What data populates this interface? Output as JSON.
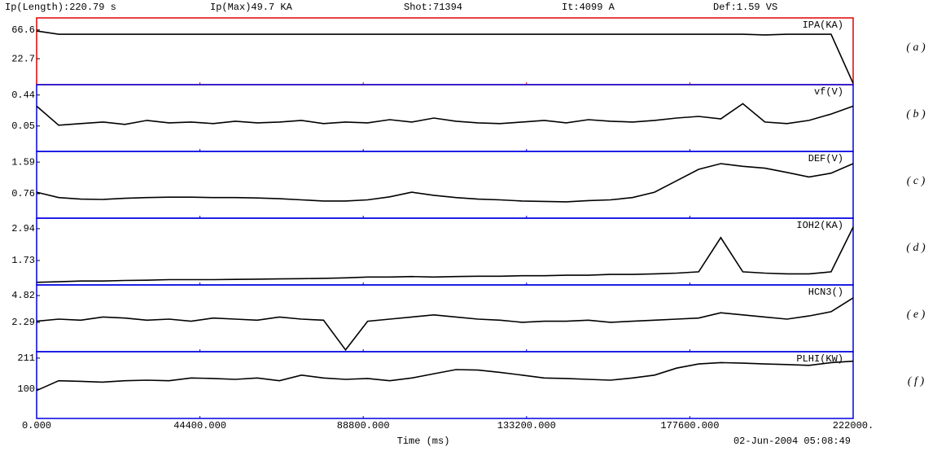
{
  "header": {
    "length": "Ip(Length):220.79 s",
    "max": "Ip(Max)49.7 KA",
    "shot": "Shot:71394",
    "it": "It:4099 A",
    "def": "Def:1.59 VS"
  },
  "footer": {
    "xlabel": "Time (ms)",
    "timestamp": "02-Jun-2004 05:08:49"
  },
  "chart_data": [
    {
      "type": "line",
      "title": "IPA(KA)",
      "panel": "( a )",
      "border_color": "#e00000",
      "color": "#000000",
      "ylim": [
        -17,
        85
      ],
      "yticks": [
        {
          "value": 66.6,
          "label": "66.6"
        },
        {
          "value": 22.7,
          "label": "22.7"
        }
      ],
      "x": [
        0,
        6000,
        12000,
        18000,
        24000,
        30000,
        36000,
        42000,
        48000,
        54000,
        60000,
        66000,
        72000,
        78000,
        84000,
        90000,
        96000,
        102000,
        108000,
        114000,
        120000,
        126000,
        132000,
        138000,
        144000,
        150000,
        156000,
        162000,
        168000,
        174000,
        180000,
        186000,
        192000,
        198000,
        204000,
        210000,
        216000,
        222000
      ],
      "values": [
        65,
        60,
        60,
        60,
        60,
        60,
        60,
        60,
        60,
        60,
        60,
        60,
        60,
        60,
        60,
        60,
        60,
        60,
        60,
        60,
        60,
        60,
        60,
        60,
        60,
        60,
        60,
        60,
        60,
        60,
        60,
        60,
        60,
        59,
        60,
        60,
        60,
        -15
      ]
    },
    {
      "type": "line",
      "title": "vf(V)",
      "panel": "( b )",
      "border_color": "#0000e0",
      "color": "#000000",
      "ylim": [
        -0.27,
        0.57
      ],
      "yticks": [
        0.44,
        0.05
      ],
      "x": [
        0,
        6000,
        12000,
        18000,
        24000,
        30000,
        36000,
        42000,
        48000,
        54000,
        60000,
        66000,
        72000,
        78000,
        84000,
        90000,
        96000,
        102000,
        108000,
        114000,
        120000,
        126000,
        132000,
        138000,
        144000,
        150000,
        156000,
        162000,
        168000,
        174000,
        180000,
        186000,
        192000,
        198000,
        204000,
        210000,
        216000,
        222000
      ],
      "values": [
        0.3,
        0.06,
        0.08,
        0.1,
        0.07,
        0.12,
        0.09,
        0.1,
        0.08,
        0.11,
        0.09,
        0.1,
        0.12,
        0.08,
        0.1,
        0.09,
        0.13,
        0.1,
        0.15,
        0.11,
        0.09,
        0.08,
        0.1,
        0.12,
        0.09,
        0.13,
        0.11,
        0.1,
        0.12,
        0.15,
        0.17,
        0.14,
        0.33,
        0.1,
        0.08,
        0.12,
        0.2,
        0.3
      ]
    },
    {
      "type": "line",
      "title": "DEF(V)",
      "panel": "( c )",
      "border_color": "#0000e0",
      "color": "#000000",
      "ylim": [
        0.12,
        1.87
      ],
      "yticks": [
        1.59,
        0.76
      ],
      "x": [
        0,
        6000,
        12000,
        18000,
        24000,
        30000,
        36000,
        42000,
        48000,
        54000,
        60000,
        66000,
        72000,
        78000,
        84000,
        90000,
        96000,
        102000,
        108000,
        114000,
        120000,
        126000,
        132000,
        138000,
        144000,
        150000,
        156000,
        162000,
        168000,
        174000,
        180000,
        186000,
        192000,
        198000,
        204000,
        210000,
        216000,
        222000
      ],
      "values": [
        0.8,
        0.66,
        0.62,
        0.61,
        0.64,
        0.66,
        0.67,
        0.67,
        0.66,
        0.66,
        0.65,
        0.63,
        0.6,
        0.57,
        0.57,
        0.6,
        0.68,
        0.8,
        0.72,
        0.66,
        0.62,
        0.6,
        0.57,
        0.56,
        0.55,
        0.58,
        0.6,
        0.66,
        0.8,
        1.1,
        1.4,
        1.55,
        1.48,
        1.43,
        1.32,
        1.2,
        1.3,
        1.55
      ]
    },
    {
      "type": "line",
      "title": "IOH2(KA)",
      "panel": "( d )",
      "border_color": "#0000e0",
      "color": "#000000",
      "ylim": [
        0.8,
        3.34
      ],
      "yticks": [
        2.94,
        1.73
      ],
      "x": [
        0,
        6000,
        12000,
        18000,
        24000,
        30000,
        36000,
        42000,
        48000,
        54000,
        60000,
        66000,
        72000,
        78000,
        84000,
        90000,
        96000,
        102000,
        108000,
        114000,
        120000,
        126000,
        132000,
        138000,
        144000,
        150000,
        156000,
        162000,
        168000,
        174000,
        180000,
        186000,
        192000,
        198000,
        204000,
        210000,
        216000,
        222000
      ],
      "values": [
        0.9,
        0.92,
        0.95,
        0.95,
        0.97,
        0.98,
        1.0,
        1.0,
        1.0,
        1.01,
        1.02,
        1.03,
        1.04,
        1.05,
        1.07,
        1.1,
        1.1,
        1.12,
        1.1,
        1.12,
        1.13,
        1.13,
        1.15,
        1.15,
        1.17,
        1.17,
        1.2,
        1.2,
        1.22,
        1.25,
        1.3,
        2.6,
        1.3,
        1.25,
        1.22,
        1.22,
        1.3,
        3.0
      ]
    },
    {
      "type": "line",
      "title": "HCN3()",
      "panel": "( e )",
      "border_color": "#0000e0",
      "color": "#000000",
      "ylim": [
        -0.47,
        5.82
      ],
      "yticks": [
        4.82,
        2.29
      ],
      "x": [
        0,
        6000,
        12000,
        18000,
        24000,
        30000,
        36000,
        42000,
        48000,
        54000,
        60000,
        66000,
        72000,
        78000,
        84000,
        90000,
        96000,
        102000,
        108000,
        114000,
        120000,
        126000,
        132000,
        138000,
        144000,
        150000,
        156000,
        162000,
        168000,
        174000,
        180000,
        186000,
        192000,
        198000,
        204000,
        210000,
        216000,
        222000
      ],
      "values": [
        2.4,
        2.6,
        2.5,
        2.8,
        2.7,
        2.5,
        2.6,
        2.4,
        2.7,
        2.6,
        2.5,
        2.8,
        2.6,
        2.5,
        -0.3,
        2.4,
        2.6,
        2.8,
        3.0,
        2.8,
        2.6,
        2.5,
        2.3,
        2.4,
        2.4,
        2.5,
        2.3,
        2.4,
        2.5,
        2.6,
        2.7,
        3.2,
        3.0,
        2.8,
        2.6,
        2.9,
        3.3,
        4.6
      ]
    },
    {
      "type": "line",
      "title": "PLHI(KW)",
      "panel": "( f )",
      "border_color": "#0000e0",
      "color": "#000000",
      "ylim": [
        -5,
        234
      ],
      "yticks": [
        211,
        100
      ],
      "xlim": [
        0,
        222000
      ],
      "xticks": [
        {
          "value": 0,
          "label": "0.000"
        },
        {
          "value": 44400,
          "label": "44400.000"
        },
        {
          "value": 88800,
          "label": "88800.000"
        },
        {
          "value": 133200,
          "label": "133200.000"
        },
        {
          "value": 177600,
          "label": "177600.000"
        },
        {
          "value": 222000,
          "label": "222000."
        }
      ],
      "x": [
        0,
        6000,
        12000,
        18000,
        24000,
        30000,
        36000,
        42000,
        48000,
        54000,
        60000,
        66000,
        72000,
        78000,
        84000,
        90000,
        96000,
        102000,
        108000,
        114000,
        120000,
        126000,
        132000,
        138000,
        144000,
        150000,
        156000,
        162000,
        168000,
        174000,
        180000,
        186000,
        192000,
        198000,
        204000,
        210000,
        216000,
        222000
      ],
      "values": [
        95,
        130,
        128,
        125,
        130,
        132,
        130,
        140,
        138,
        135,
        140,
        130,
        150,
        140,
        135,
        138,
        130,
        140,
        155,
        170,
        168,
        160,
        150,
        140,
        138,
        135,
        132,
        140,
        150,
        175,
        190,
        195,
        193,
        190,
        188,
        185,
        195,
        200
      ]
    }
  ]
}
